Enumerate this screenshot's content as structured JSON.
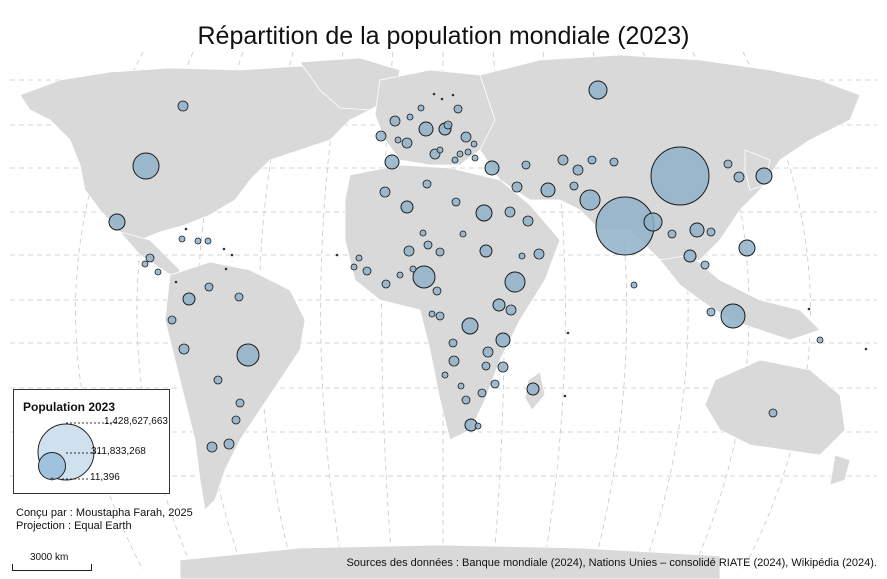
{
  "title": "Répartition de la population mondiale (2023)",
  "colors": {
    "land": "#d9d9d9",
    "land_border": "#ffffff",
    "graticule": "#c8c8c8",
    "bubble_fill": "#8fb0c8",
    "bubble_stroke": "#1a1a1a",
    "legend_fill_large": "#cfe1ef",
    "legend_fill_small": "#9fc3dd"
  },
  "legend": {
    "title": "Population 2023",
    "values": [
      "1,428,627,663",
      "311,833,268",
      "11,396"
    ]
  },
  "credits": {
    "author": "Conçu par : Moustapha Farah, 2025",
    "projection": "Projection : Equal Earth"
  },
  "scale": {
    "label": "3000 km"
  },
  "sources": "Sources des données : Banque mondiale (2024), Nations Unies – consolidé RIATE (2024), Wikipédia (2024)."
}
